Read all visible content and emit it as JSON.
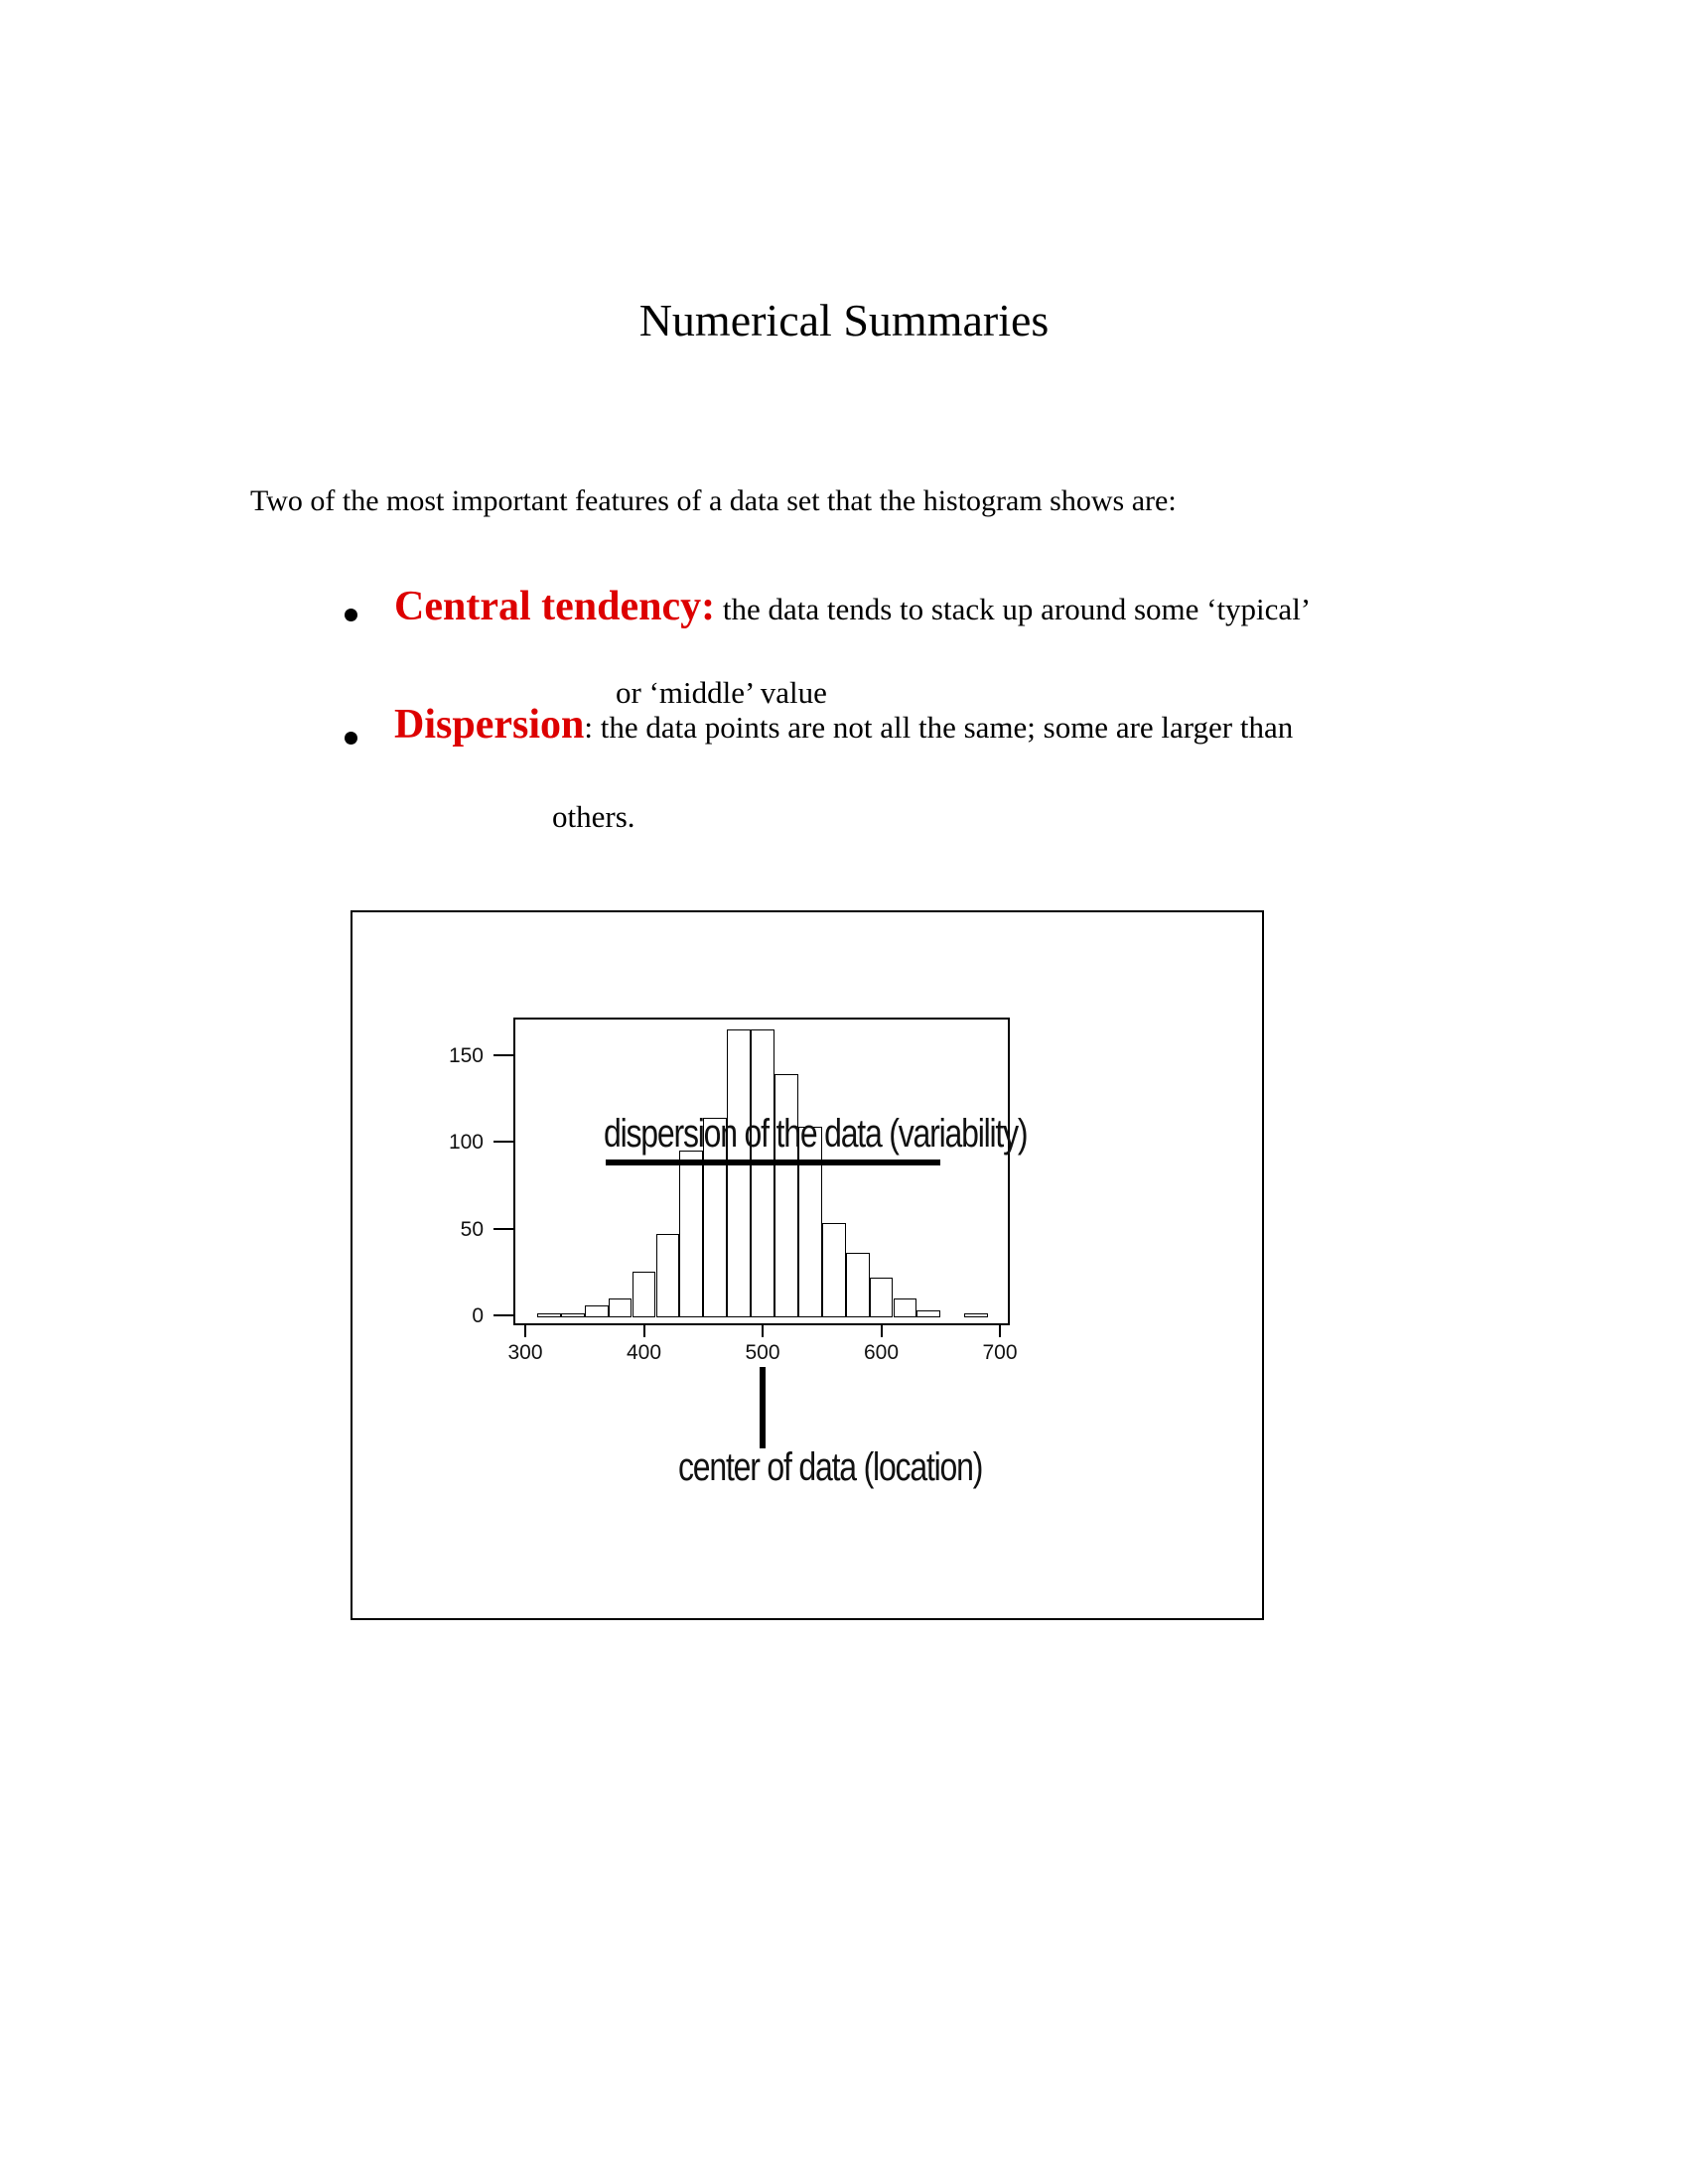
{
  "page": {
    "title": "Numerical Summaries",
    "intro": "Two of the most important features of a data set that the histogram shows are:",
    "bullets": [
      {
        "term": "Central tendency:",
        "rest": " the data tends to stack up around some ‘typical’",
        "line2": "or ‘middle’ value"
      },
      {
        "term": "Dispersion",
        "rest": ": the data points are not all the same; some are larger than",
        "line2": "others."
      }
    ],
    "accent_color": "#dd0000",
    "text_color": "#000000"
  },
  "chart_data": {
    "type": "bar",
    "subtype": "histogram",
    "title": "",
    "xlabel": "",
    "ylabel": "",
    "grid": false,
    "legend": false,
    "x_ticks": [
      300,
      400,
      500,
      600,
      700
    ],
    "y_ticks": [
      0,
      50,
      100,
      150
    ],
    "xlim": [
      290,
      708
    ],
    "ylim": [
      -6,
      172
    ],
    "bin_width": 20,
    "bins": [
      {
        "start": 310,
        "count": 1
      },
      {
        "start": 330,
        "count": 1
      },
      {
        "start": 350,
        "count": 6
      },
      {
        "start": 370,
        "count": 10
      },
      {
        "start": 390,
        "count": 25
      },
      {
        "start": 410,
        "count": 47
      },
      {
        "start": 430,
        "count": 95
      },
      {
        "start": 450,
        "count": 114
      },
      {
        "start": 470,
        "count": 165
      },
      {
        "start": 490,
        "count": 165
      },
      {
        "start": 510,
        "count": 139
      },
      {
        "start": 530,
        "count": 109
      },
      {
        "start": 550,
        "count": 53
      },
      {
        "start": 570,
        "count": 36
      },
      {
        "start": 590,
        "count": 22
      },
      {
        "start": 610,
        "count": 10
      },
      {
        "start": 630,
        "count": 3
      },
      {
        "start": 650,
        "count": 0
      },
      {
        "start": 670,
        "count": 1
      }
    ],
    "bar_fill": "#ffffff",
    "bar_stroke": "#000000",
    "annotations": [
      {
        "id": "dispersion",
        "label": "dispersion of the data (variability)",
        "line": {
          "x1": 368,
          "x2": 650,
          "y": 88
        }
      },
      {
        "id": "center",
        "label": "center of data (location)",
        "marker_x": 500
      }
    ]
  }
}
